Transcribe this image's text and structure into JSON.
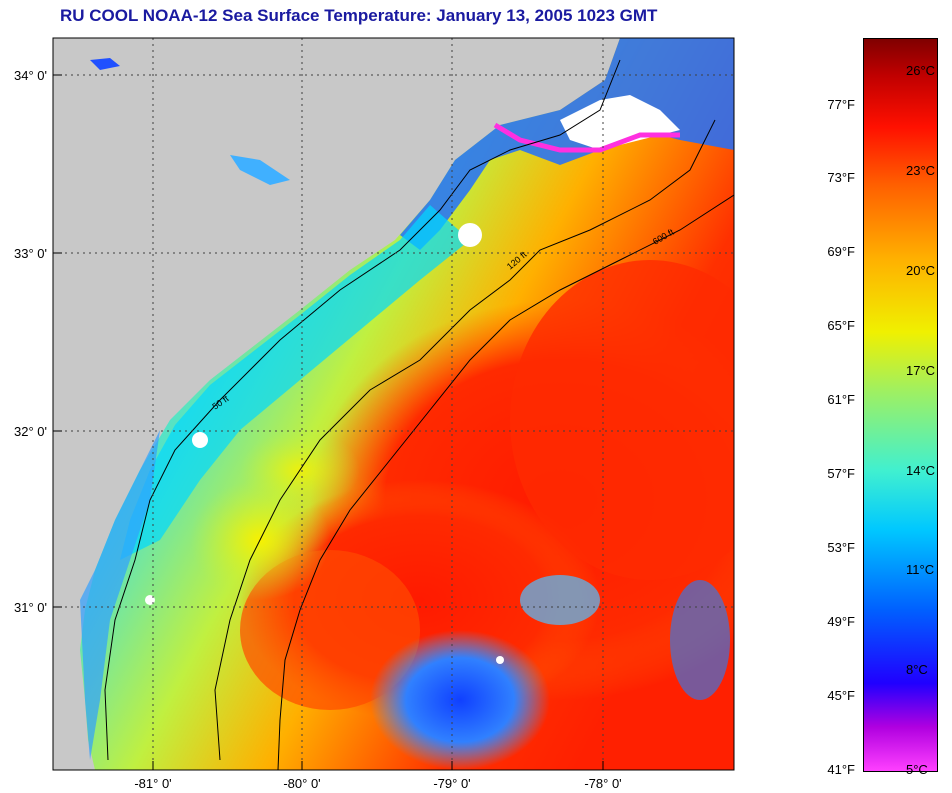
{
  "title": "RU COOL  NOAA-12  Sea Surface Temperature:  January 13, 2005 1023 GMT",
  "map": {
    "lat_labels": [
      "34° 0'",
      "33° 0'",
      "32° 0'",
      "31° 0'"
    ],
    "lon_labels": [
      "-81° 0'",
      "-80° 0'",
      "-79° 0'",
      "-78° 0'"
    ],
    "lat_values": [
      34,
      33,
      32,
      31
    ],
    "lon_values": [
      -81,
      -80,
      -79,
      -78
    ],
    "lat_range": [
      30.1,
      34.2
    ],
    "lon_range": [
      -81.7,
      -77.1
    ],
    "contour_labels": [
      "50 ft",
      "120 ft",
      "600 ft"
    ],
    "land_color": "#c8c8c8",
    "grid": "dotted"
  },
  "colorbar": {
    "fahrenheit": [
      "77°F",
      "73°F",
      "69°F",
      "65°F",
      "61°F",
      "57°F",
      "53°F",
      "49°F",
      "45°F",
      "41°F"
    ],
    "fahrenheit_values": [
      77,
      73,
      69,
      65,
      61,
      57,
      53,
      49,
      45,
      41
    ],
    "celsius": [
      "26°C",
      "23°C",
      "20°C",
      "17°C",
      "14°C",
      "11°C",
      "8°C",
      "5°C"
    ],
    "celsius_values": [
      26,
      23,
      20,
      17,
      14,
      11,
      8,
      5
    ],
    "range_f": [
      41,
      80.6
    ]
  }
}
